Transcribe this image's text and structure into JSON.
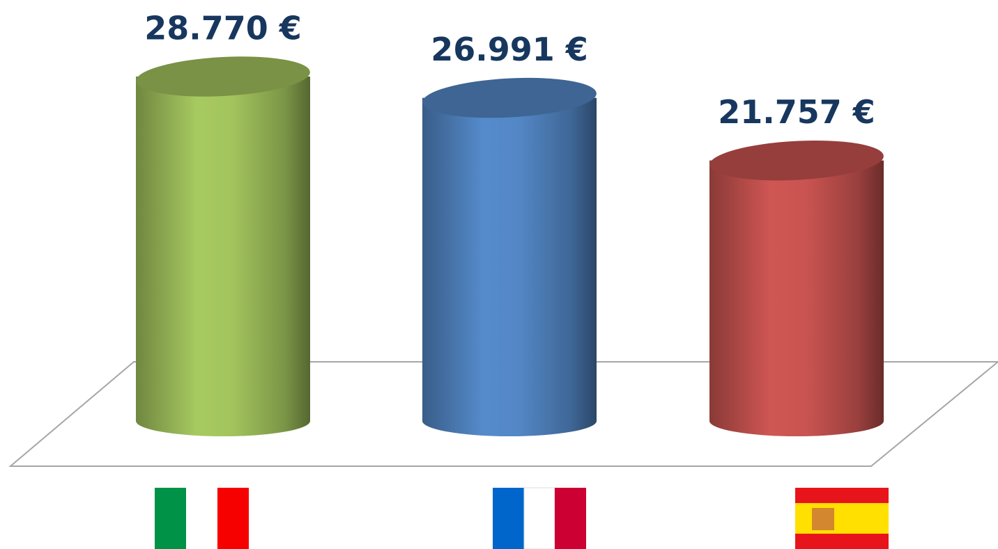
{
  "chart_data": {
    "type": "bar",
    "categories": [
      null,
      null,
      null
    ],
    "values": [
      28770,
      26991,
      21757
    ],
    "value_labels": [
      "28.770 €",
      "26.991 €",
      "21.757 €"
    ],
    "colors": [
      "#9bbb59",
      "#4f81bd",
      "#c0504d"
    ]
  }
}
